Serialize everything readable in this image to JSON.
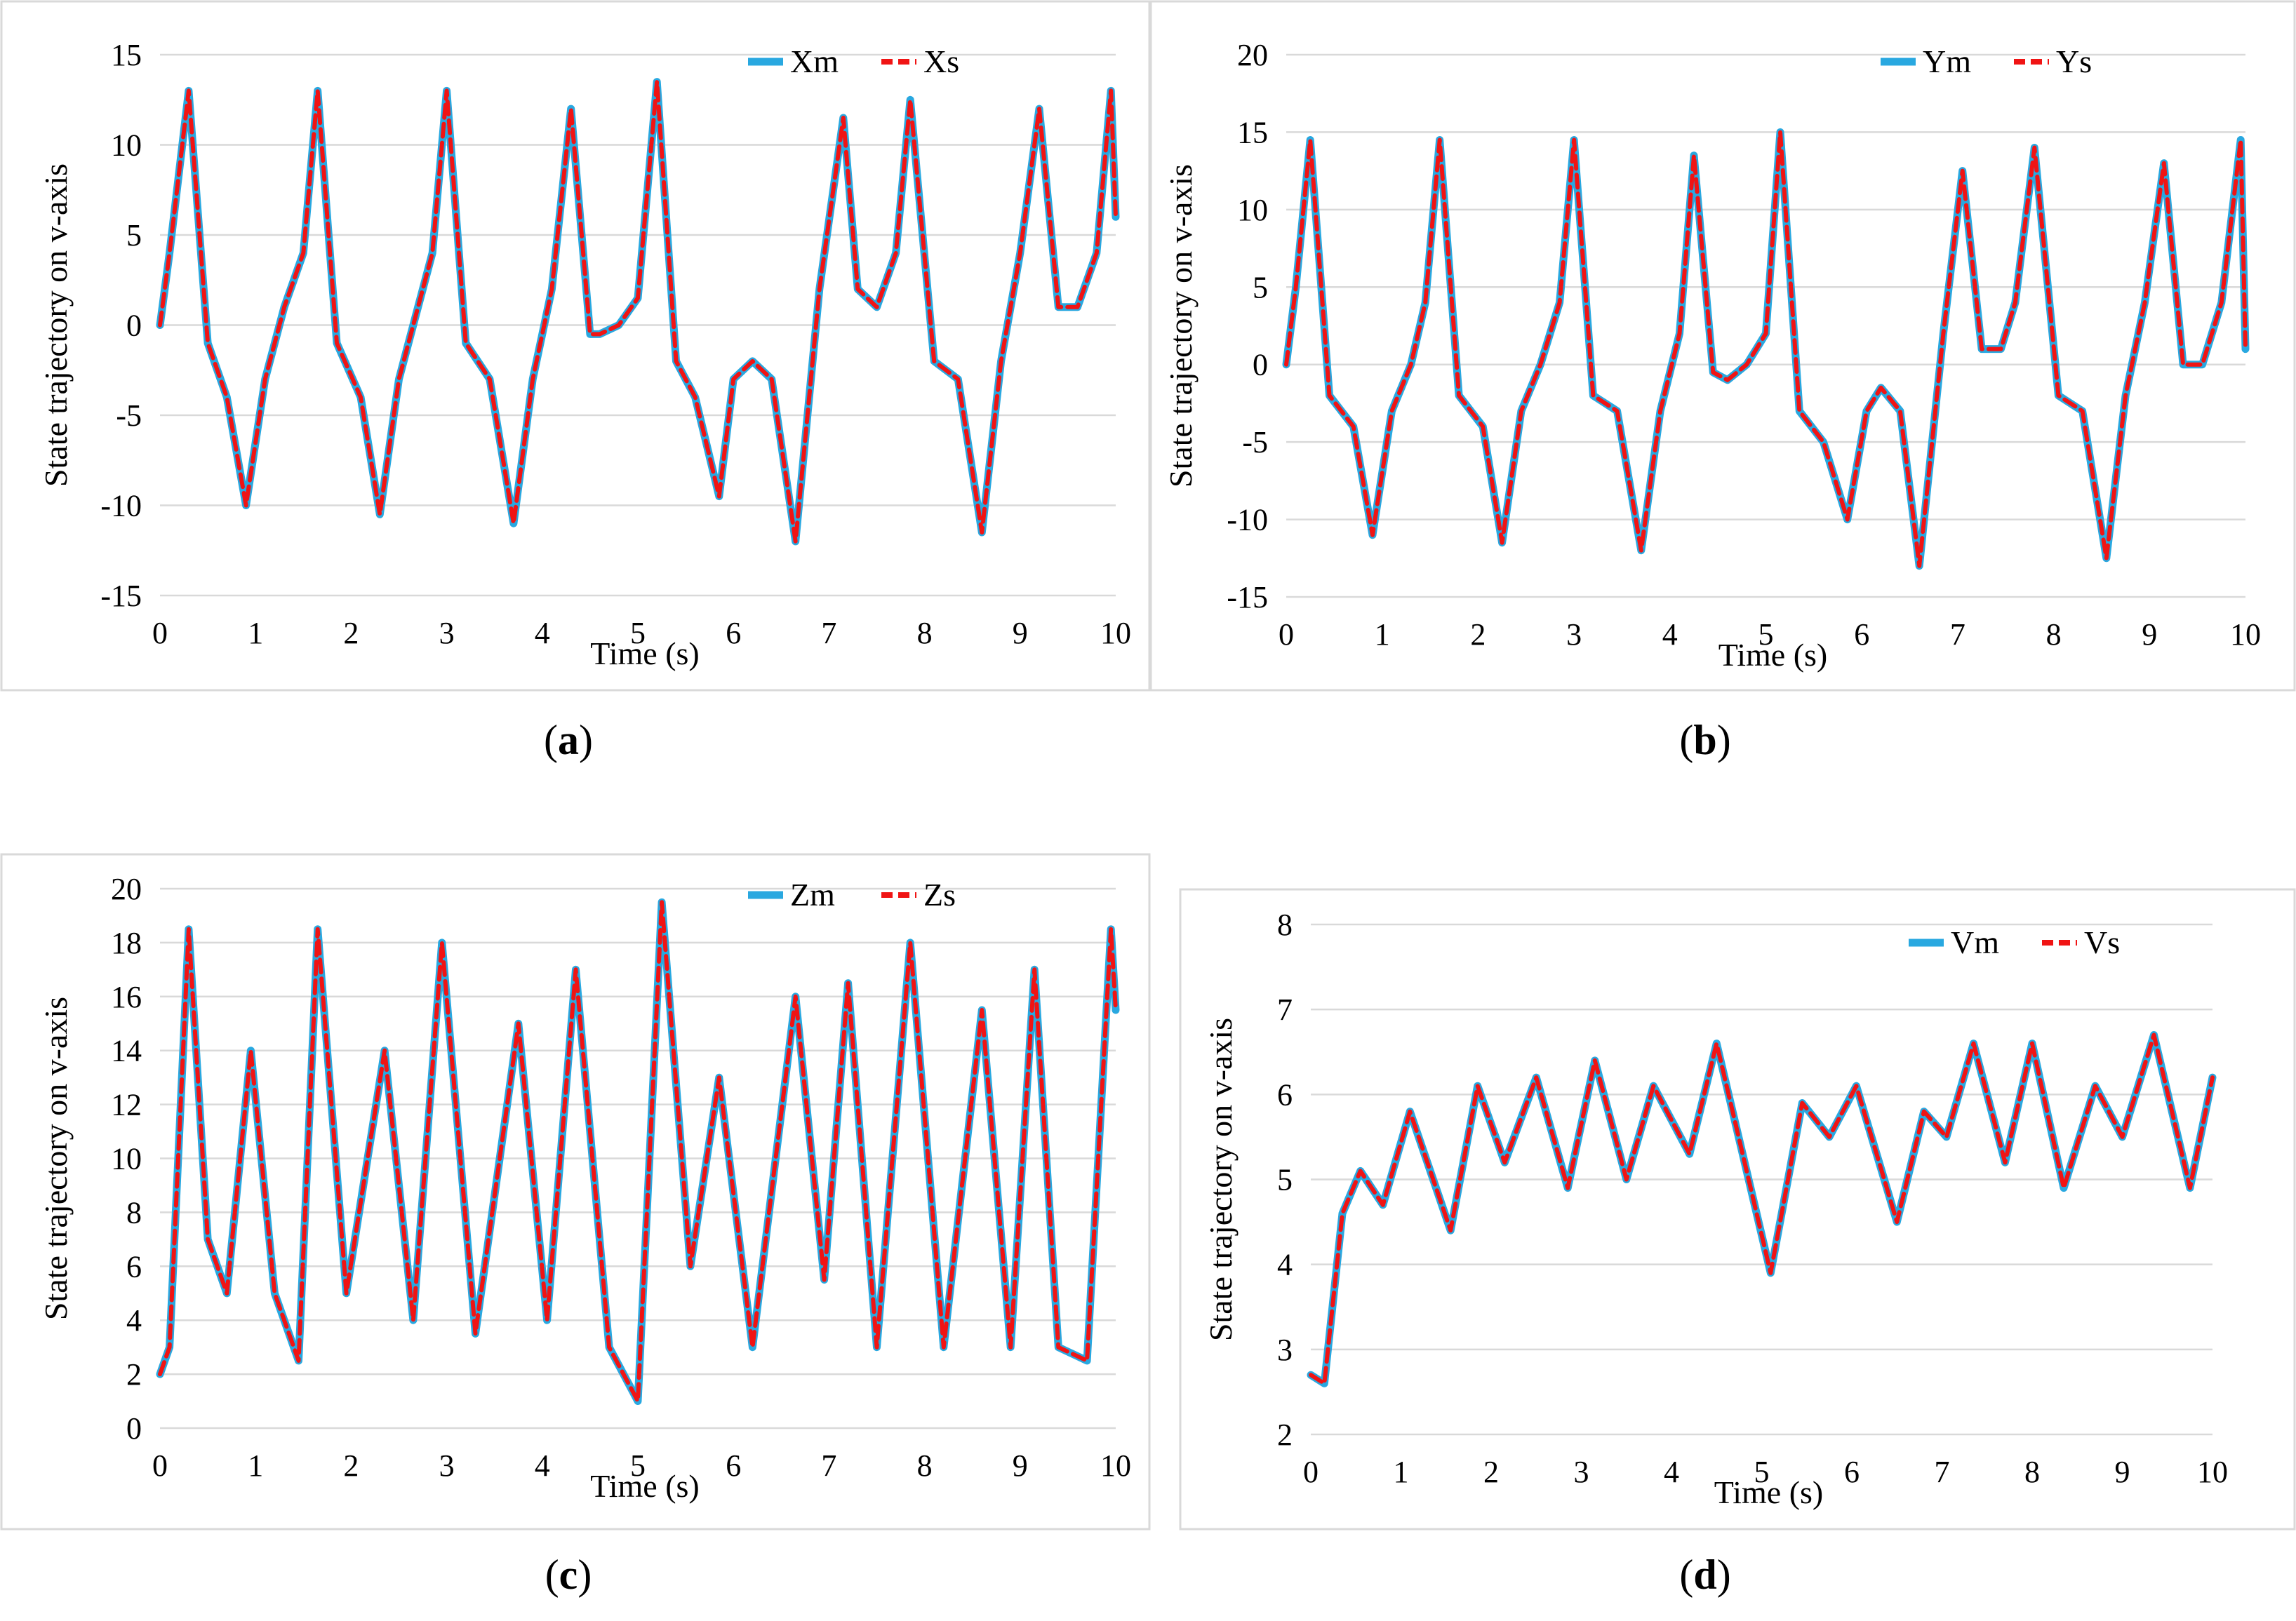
{
  "colors": {
    "master": "#29a8e0",
    "slave": "#f01414",
    "grid": "#d9d9d9",
    "frame": "#d9d9d9"
  },
  "chart_data": [
    {
      "type": "line",
      "caption": "(a)",
      "caption_letter": "a",
      "xlabel": "Time (s)",
      "ylabel": "State trajectory on v-axis",
      "xlim": [
        0,
        10
      ],
      "ylim": [
        -15,
        15
      ],
      "x_ticks": [
        "0",
        "1",
        "2",
        "3",
        "4",
        "5",
        "6",
        "7",
        "8",
        "9",
        "10"
      ],
      "y_ticks": [
        "-15",
        "-10",
        "-5",
        "0",
        "5",
        "10",
        "15"
      ],
      "y_tick_values": [
        -15,
        -10,
        -5,
        0,
        5,
        10,
        15
      ],
      "legend": [
        "Xm",
        "Xs"
      ],
      "x": [
        0,
        0.1,
        0.3,
        0.5,
        0.7,
        0.9,
        1.1,
        1.3,
        1.5,
        1.65,
        1.85,
        2.1,
        2.3,
        2.5,
        2.7,
        2.85,
        3.0,
        3.2,
        3.45,
        3.7,
        3.9,
        4.1,
        4.3,
        4.5,
        4.6,
        4.8,
        5.0,
        5.2,
        5.4,
        5.6,
        5.85,
        6.0,
        6.2,
        6.4,
        6.65,
        6.9,
        7.15,
        7.3,
        7.5,
        7.7,
        7.85,
        8.1,
        8.35,
        8.6,
        8.8,
        9.0,
        9.2,
        9.4,
        9.6,
        9.8,
        9.95,
        10.0
      ],
      "series": [
        {
          "name": "Xm",
          "values": [
            0,
            4,
            13,
            -1,
            -4,
            -10,
            -3,
            1,
            4,
            13,
            -1,
            -4,
            -10.5,
            -3,
            1,
            4,
            13,
            -1,
            -3,
            -11,
            -3,
            2,
            12,
            -0.5,
            -0.5,
            0,
            1.5,
            13.5,
            -2,
            -4,
            -9.5,
            -3,
            -2,
            -3,
            -12,
            2,
            11.5,
            2,
            1,
            4,
            12.5,
            -2,
            -3,
            -11.5,
            -2,
            4,
            12,
            1,
            1,
            4,
            13,
            6
          ]
        },
        {
          "name": "Xs",
          "values": [
            0,
            4,
            13,
            -1,
            -4,
            -10,
            -3,
            1,
            4,
            13,
            -1,
            -4,
            -10.5,
            -3,
            1,
            4,
            13,
            -1,
            -3,
            -11,
            -3,
            2,
            12,
            -0.5,
            -0.5,
            0,
            1.5,
            13.5,
            -2,
            -4,
            -9.5,
            -3,
            -2,
            -3,
            -12,
            2,
            11.5,
            2,
            1,
            4,
            12.5,
            -2,
            -3,
            -11.5,
            -2,
            4,
            12,
            1,
            1,
            4,
            13,
            6
          ]
        }
      ]
    },
    {
      "type": "line",
      "caption": "(b)",
      "caption_letter": "b",
      "xlabel": "Time (s)",
      "ylabel": "State trajectory on v-axis",
      "xlim": [
        0,
        10
      ],
      "ylim": [
        -15,
        20
      ],
      "x_ticks": [
        "0",
        "1",
        "2",
        "3",
        "4",
        "5",
        "6",
        "7",
        "8",
        "9",
        "10"
      ],
      "y_ticks": [
        "-15",
        "-10",
        "-5",
        "0",
        "5",
        "10",
        "15",
        "20"
      ],
      "y_tick_values": [
        -15,
        -10,
        -5,
        0,
        5,
        10,
        15,
        20
      ],
      "legend": [
        "Ym",
        "Ys"
      ],
      "x": [
        0,
        0.1,
        0.25,
        0.45,
        0.7,
        0.9,
        1.1,
        1.3,
        1.45,
        1.6,
        1.8,
        2.05,
        2.25,
        2.45,
        2.65,
        2.85,
        3.0,
        3.2,
        3.45,
        3.7,
        3.9,
        4.1,
        4.25,
        4.45,
        4.6,
        4.8,
        5.0,
        5.15,
        5.35,
        5.6,
        5.85,
        6.05,
        6.2,
        6.4,
        6.6,
        6.85,
        7.05,
        7.25,
        7.45,
        7.6,
        7.8,
        8.05,
        8.3,
        8.55,
        8.75,
        8.95,
        9.15,
        9.35,
        9.55,
        9.75,
        9.95,
        10.0
      ],
      "series": [
        {
          "name": "Ym",
          "values": [
            0,
            5,
            14.5,
            -2,
            -4,
            -11,
            -3,
            0,
            4,
            14.5,
            -2,
            -4,
            -11.5,
            -3,
            0,
            4,
            14.5,
            -2,
            -3,
            -12,
            -3,
            2,
            13.5,
            -0.5,
            -1,
            0,
            2,
            15,
            -3,
            -5,
            -10,
            -3,
            -1.5,
            -3,
            -13,
            2,
            12.5,
            1,
            1,
            4,
            14,
            -2,
            -3,
            -12.5,
            -2,
            4,
            13,
            0,
            0,
            4,
            14.5,
            1
          ]
        },
        {
          "name": "Ys",
          "values": [
            0,
            5,
            14.5,
            -2,
            -4,
            -11,
            -3,
            0,
            4,
            14.5,
            -2,
            -4,
            -11.5,
            -3,
            0,
            4,
            14.5,
            -2,
            -3,
            -12,
            -3,
            2,
            13.5,
            -0.5,
            -1,
            0,
            2,
            15,
            -3,
            -5,
            -10,
            -3,
            -1.5,
            -3,
            -13,
            2,
            12.5,
            1,
            1,
            4,
            14,
            -2,
            -3,
            -12.5,
            -2,
            4,
            13,
            0,
            0,
            4,
            14.5,
            1
          ]
        }
      ]
    },
    {
      "type": "line",
      "caption": "(c)",
      "caption_letter": "c",
      "xlabel": "Time (s)",
      "ylabel": "State trajectory on v-axis",
      "xlim": [
        0,
        10
      ],
      "ylim": [
        0,
        20
      ],
      "x_ticks": [
        "0",
        "1",
        "2",
        "3",
        "4",
        "5",
        "6",
        "7",
        "8",
        "9",
        "10"
      ],
      "y_ticks": [
        "0",
        "2",
        "4",
        "6",
        "8",
        "10",
        "12",
        "14",
        "16",
        "18",
        "20"
      ],
      "y_tick_values": [
        0,
        2,
        4,
        6,
        8,
        10,
        12,
        14,
        16,
        18,
        20
      ],
      "legend": [
        "Zm",
        "Zs"
      ],
      "x": [
        0,
        0.1,
        0.3,
        0.5,
        0.7,
        0.95,
        1.2,
        1.45,
        1.65,
        1.95,
        2.35,
        2.65,
        2.95,
        3.3,
        3.75,
        4.05,
        4.35,
        4.7,
        5.0,
        5.25,
        5.55,
        5.85,
        6.2,
        6.65,
        6.95,
        7.2,
        7.5,
        7.85,
        8.2,
        8.6,
        8.9,
        9.15,
        9.4,
        9.7,
        9.95,
        10.0
      ],
      "series": [
        {
          "name": "Zm",
          "values": [
            2,
            3,
            18.5,
            7,
            5,
            14,
            5,
            2.5,
            18.5,
            5,
            14,
            4,
            18,
            3.5,
            15,
            4,
            17,
            3,
            1,
            19.5,
            6,
            13,
            3,
            16,
            5.5,
            16.5,
            3,
            18,
            3,
            15.5,
            3,
            17,
            3,
            2.5,
            18.5,
            15.5
          ]
        },
        {
          "name": "Zs",
          "values": [
            2,
            3,
            18.5,
            7,
            5,
            14,
            5,
            2.5,
            18.5,
            5,
            14,
            4,
            18,
            3.5,
            15,
            4,
            17,
            3,
            1,
            19.5,
            6,
            13,
            3,
            16,
            5.5,
            16.5,
            3,
            18,
            3,
            15.5,
            3,
            17,
            3,
            2.5,
            18.5,
            15.5
          ]
        }
      ]
    },
    {
      "type": "line",
      "caption": "(d)",
      "caption_letter": "d",
      "xlabel": "Time (s)",
      "ylabel": "State trajectory on v-axis",
      "xlim": [
        0,
        10
      ],
      "ylim": [
        2,
        8
      ],
      "x_ticks": [
        "0",
        "1",
        "2",
        "3",
        "4",
        "5",
        "6",
        "7",
        "8",
        "9",
        "10"
      ],
      "y_ticks": [
        "2",
        "3",
        "4",
        "5",
        "6",
        "7",
        "8"
      ],
      "y_tick_values": [
        2,
        3,
        4,
        5,
        6,
        7,
        8
      ],
      "legend": [
        "Vm",
        "Vs"
      ],
      "x": [
        0,
        0.15,
        0.35,
        0.55,
        0.8,
        1.1,
        1.55,
        1.85,
        2.15,
        2.5,
        2.85,
        3.15,
        3.5,
        3.8,
        4.2,
        4.5,
        5.1,
        5.45,
        5.75,
        6.05,
        6.5,
        6.8,
        7.05,
        7.35,
        7.7,
        8.0,
        8.35,
        8.7,
        9.0,
        9.35,
        9.75,
        10.0
      ],
      "series": [
        {
          "name": "Vm",
          "values": [
            2.7,
            2.6,
            4.6,
            5.1,
            4.7,
            5.8,
            4.4,
            6.1,
            5.2,
            6.2,
            4.9,
            6.4,
            5.0,
            6.1,
            5.3,
            6.6,
            3.9,
            5.9,
            5.5,
            6.1,
            4.5,
            5.8,
            5.5,
            6.6,
            5.2,
            6.6,
            4.9,
            6.1,
            5.5,
            6.7,
            4.9,
            6.2
          ]
        },
        {
          "name": "Vs",
          "values": [
            2.7,
            2.6,
            4.6,
            5.1,
            4.7,
            5.8,
            4.4,
            6.1,
            5.2,
            6.2,
            4.9,
            6.4,
            5.0,
            6.1,
            5.3,
            6.6,
            3.9,
            5.9,
            5.5,
            6.1,
            4.5,
            5.8,
            5.5,
            6.6,
            5.2,
            6.6,
            4.9,
            6.1,
            5.5,
            6.7,
            4.9,
            6.2
          ]
        }
      ]
    }
  ]
}
